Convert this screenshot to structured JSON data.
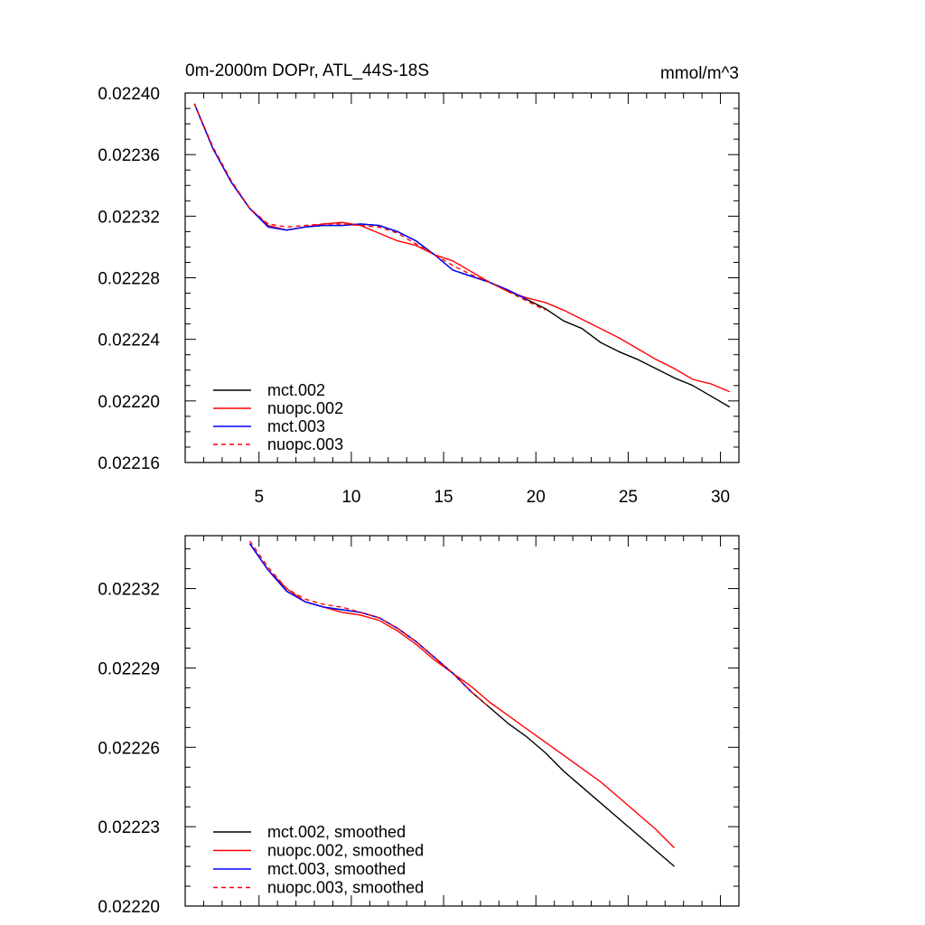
{
  "chart_data": [
    {
      "type": "line",
      "title": "0m-2000m DOPr, ATL_44S-18S",
      "units": "mmol/m^3",
      "xlim": [
        1,
        31
      ],
      "ylim": [
        0.02216,
        0.0224
      ],
      "x_ticks": [
        5,
        10,
        15,
        20,
        25,
        30
      ],
      "x_tick_labels": [
        "5",
        "10",
        "15",
        "20",
        "25",
        "30"
      ],
      "y_ticks": [
        0.02216,
        0.0222,
        0.02224,
        0.02228,
        0.02232,
        0.02236,
        0.0224
      ],
      "y_tick_labels": [
        "0.02216",
        "0.02220",
        "0.02224",
        "0.02228",
        "0.02232",
        "0.02236",
        "0.02240"
      ],
      "legend_position": "bottom-left",
      "series": [
        {
          "name": "mct.002",
          "color": "#000000",
          "dash": "solid",
          "x": [
            1.5,
            2.5,
            3.5,
            4.5,
            5.5,
            6.5,
            7.5,
            8.5,
            9.5,
            10.5,
            11.5,
            12.5,
            13.5,
            14.5,
            15.5,
            16.5,
            17.5,
            18.5,
            19.5,
            20.5,
            21.5,
            22.5,
            23.5,
            24.5,
            25.5,
            26.5,
            27.5,
            28.5,
            29.5,
            30.5
          ],
          "y": [
            0.022393,
            0.022364,
            0.022342,
            0.022325,
            0.022313,
            0.022311,
            0.022313,
            0.022314,
            0.022314,
            0.022315,
            0.022314,
            0.02231,
            0.022304,
            0.022295,
            0.022285,
            0.022281,
            0.022277,
            0.022272,
            0.022266,
            0.02226,
            0.022252,
            0.022247,
            0.022238,
            0.022232,
            0.022227,
            0.022221,
            0.022215,
            0.02221,
            0.022203,
            0.022196
          ]
        },
        {
          "name": "nuopc.002",
          "color": "#ff0000",
          "dash": "solid",
          "x": [
            1.5,
            2.5,
            3.5,
            4.5,
            5.5,
            6.5,
            7.5,
            8.5,
            9.5,
            10.5,
            11.5,
            12.5,
            13.5,
            14.5,
            15.5,
            16.5,
            17.5,
            18.5,
            19.5,
            20.5,
            21.5,
            22.5,
            23.5,
            24.5,
            25.5,
            26.5,
            27.5,
            28.5,
            29.5,
            30.5
          ],
          "y": [
            0.022393,
            0.022364,
            0.022342,
            0.022325,
            0.022314,
            0.022311,
            0.022313,
            0.022315,
            0.022316,
            0.022314,
            0.022309,
            0.022304,
            0.022301,
            0.022295,
            0.022291,
            0.022284,
            0.022277,
            0.022271,
            0.022267,
            0.022264,
            0.022259,
            0.022253,
            0.022247,
            0.022241,
            0.022234,
            0.022227,
            0.022221,
            0.022214,
            0.022211,
            0.022206
          ]
        },
        {
          "name": "mct.003",
          "color": "#0000ff",
          "dash": "solid",
          "x": [
            1.5,
            2.5,
            3.5,
            4.5,
            5.5,
            6.5,
            7.5,
            8.5,
            9.5,
            10.5,
            11.5,
            12.5,
            13.5,
            14.5,
            15.5,
            16.5,
            17.5,
            18.5,
            19.5
          ],
          "y": [
            0.022393,
            0.022364,
            0.022342,
            0.022325,
            0.022313,
            0.022311,
            0.022313,
            0.022314,
            0.022314,
            0.022315,
            0.022314,
            0.02231,
            0.022304,
            0.022295,
            0.022285,
            0.022281,
            0.022277,
            0.022272,
            0.022266
          ]
        },
        {
          "name": "nuopc.003",
          "color": "#ff0000",
          "dash": "dashed",
          "x": [
            1.5,
            2.5,
            3.5,
            4.5,
            5.5,
            6.5,
            7.5,
            8.5,
            9.5,
            10.5,
            11.5,
            12.5,
            13.5,
            14.5,
            15.5,
            16.5,
            17.5,
            18.5,
            19.5,
            20.5
          ],
          "y": [
            0.022393,
            0.022365,
            0.022343,
            0.022325,
            0.022315,
            0.022313,
            0.022314,
            0.022315,
            0.022315,
            0.022314,
            0.022313,
            0.022309,
            0.022302,
            0.022295,
            0.022288,
            0.022282,
            0.022277,
            0.022271,
            0.022265,
            0.022259
          ]
        }
      ]
    },
    {
      "type": "line",
      "title": "",
      "xlim": [
        1,
        31
      ],
      "ylim": [
        0.0222,
        0.02234
      ],
      "x_ticks": [
        5,
        10,
        15,
        20,
        25,
        30
      ],
      "x_tick_labels": [],
      "y_ticks": [
        0.0222,
        0.02223,
        0.02226,
        0.02229,
        0.02232
      ],
      "y_tick_labels": [
        "0.02220",
        "0.02223",
        "0.02226",
        "0.02229",
        "0.02232"
      ],
      "legend_position": "bottom-left",
      "series": [
        {
          "name": "mct.002, smoothed",
          "color": "#000000",
          "dash": "solid",
          "x": [
            4.5,
            5.5,
            6.5,
            7.5,
            8.5,
            9.5,
            10.5,
            11.5,
            12.5,
            13.5,
            14.5,
            15.5,
            16.5,
            17.5,
            18.5,
            19.5,
            20.5,
            21.5,
            22.5,
            23.5,
            24.5,
            25.5,
            26.5,
            27.5
          ],
          "y": [
            0.022337,
            0.022327,
            0.022319,
            0.022315,
            0.022313,
            0.022312,
            0.022311,
            0.022309,
            0.022305,
            0.0223,
            0.022294,
            0.022288,
            0.022281,
            0.022275,
            0.022269,
            0.022264,
            0.022258,
            0.022251,
            0.022245,
            0.022239,
            0.022233,
            0.022227,
            0.022221,
            0.022215
          ]
        },
        {
          "name": "nuopc.002, smoothed",
          "color": "#ff0000",
          "dash": "solid",
          "x": [
            4.5,
            5.5,
            6.5,
            7.5,
            8.5,
            9.5,
            10.5,
            11.5,
            12.5,
            13.5,
            14.5,
            15.5,
            16.5,
            17.5,
            18.5,
            19.5,
            20.5,
            21.5,
            22.5,
            23.5,
            24.5,
            25.5,
            26.5,
            27.5
          ],
          "y": [
            0.022337,
            0.022327,
            0.02232,
            0.022315,
            0.022313,
            0.022311,
            0.02231,
            0.022308,
            0.022304,
            0.022299,
            0.022293,
            0.022288,
            0.022283,
            0.022277,
            0.022272,
            0.022267,
            0.022262,
            0.022257,
            0.022252,
            0.022247,
            0.022241,
            0.022235,
            0.022229,
            0.022222
          ]
        },
        {
          "name": "mct.003, smoothed",
          "color": "#0000ff",
          "dash": "solid",
          "x": [
            4.5,
            5.5,
            6.5,
            7.5,
            8.5,
            9.5,
            10.5,
            11.5,
            12.5,
            13.5,
            14.5,
            15.5,
            16.5
          ],
          "y": [
            0.022337,
            0.022327,
            0.022319,
            0.022315,
            0.022313,
            0.022312,
            0.022311,
            0.022309,
            0.022305,
            0.0223,
            0.022294,
            0.022288,
            0.022281
          ]
        },
        {
          "name": "nuopc.003, smoothed",
          "color": "#ff0000",
          "dash": "dashed",
          "x": [
            4.5,
            5.5,
            6.5,
            7.5,
            8.5,
            9.5,
            10.5,
            11.5,
            12.5,
            13.5,
            14.5,
            15.5,
            16.5,
            17.5
          ],
          "y": [
            0.022338,
            0.022328,
            0.02232,
            0.022316,
            0.022314,
            0.022313,
            0.022311,
            0.022309,
            0.022305,
            0.0223,
            0.022294,
            0.022288,
            0.022281,
            0.022275
          ]
        }
      ]
    }
  ]
}
